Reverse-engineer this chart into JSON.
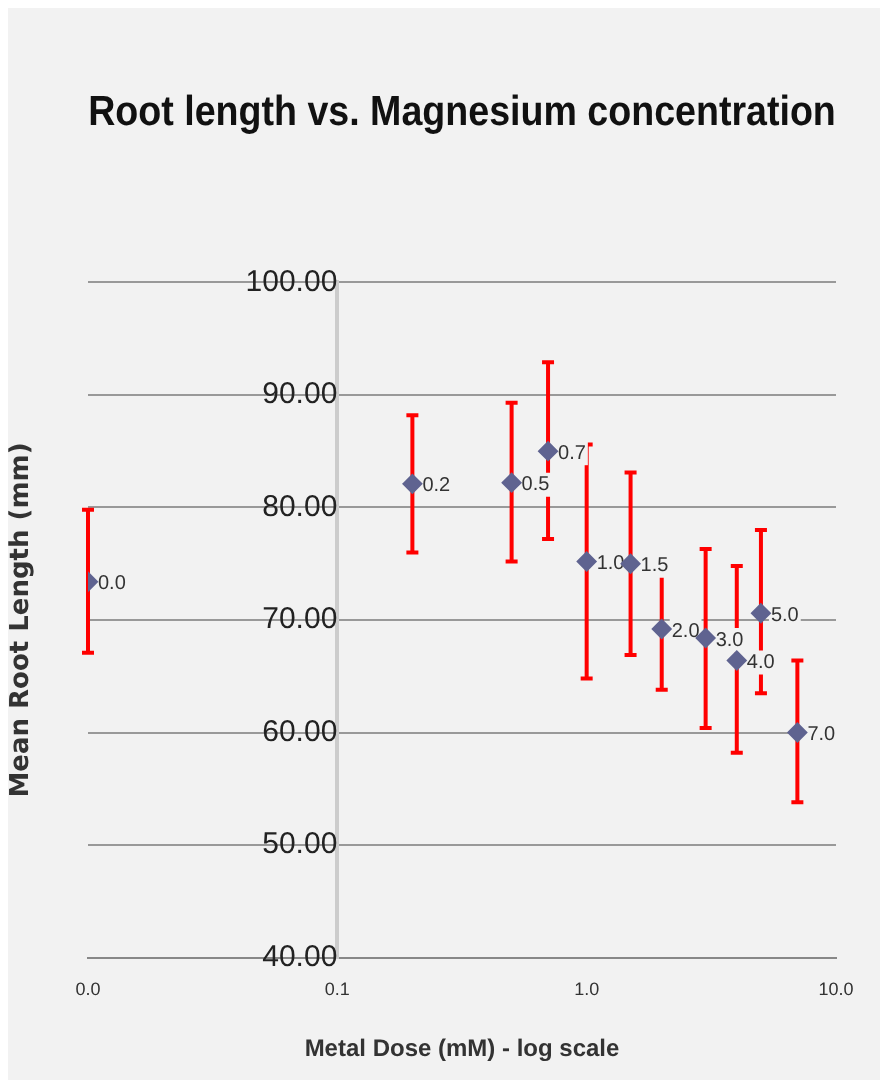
{
  "chart_data": {
    "type": "scatter",
    "title": "Root length vs. Magnesium concentration",
    "xlabel": "Metal Dose (mM) - log scale",
    "ylabel": "Mean Root Length (mm)",
    "x": [
      0.01,
      0.2,
      0.5,
      0.7,
      1.0,
      1.5,
      2.0,
      3.0,
      4.0,
      5.0,
      7.0
    ],
    "series": [
      {
        "color": "#5f6390",
        "values": [
          73.4,
          82.1,
          82.2,
          85.0,
          75.2,
          75.0,
          69.2,
          68.4,
          66.4,
          70.6,
          60.0
        ],
        "errors": [
          [
            67.1,
            79.8
          ],
          [
            76.0,
            88.2
          ],
          [
            75.2,
            89.3
          ],
          [
            77.2,
            92.9
          ],
          [
            64.8,
            85.6
          ],
          [
            66.9,
            83.1
          ],
          [
            63.8,
            74.4
          ],
          [
            60.4,
            76.3
          ],
          [
            58.2,
            74.8
          ],
          [
            63.5,
            78.0
          ],
          [
            53.8,
            66.4
          ]
        ]
      }
    ],
    "annotations": [
      {
        "text": "0.0",
        "x": 0.01,
        "y": 73.4
      },
      {
        "text": "0.2",
        "x": 0.2,
        "y": 82.1
      },
      {
        "text": "0.5",
        "x": 0.5,
        "y": 82.2
      },
      {
        "text": "0.7",
        "x": 0.7,
        "y": 85.0
      },
      {
        "text": "1.0",
        "x": 1.0,
        "y": 75.2
      },
      {
        "text": "1.5",
        "x": 1.5,
        "y": 75.0
      },
      {
        "text": "2.0",
        "x": 2.0,
        "y": 69.2
      },
      {
        "text": "3.0",
        "x": 3.0,
        "y": 68.4
      },
      {
        "text": "4.0",
        "x": 4.0,
        "y": 66.4
      },
      {
        "text": "5.0",
        "x": 5.0,
        "y": 70.6
      },
      {
        "text": "7.0",
        "x": 7.0,
        "y": 60.0
      }
    ],
    "log": "x",
    "xlim": [
      0.01,
      10
    ],
    "xticks": [
      {
        "value": 0.01,
        "label": "0.0"
      },
      {
        "value": 0.1,
        "label": "0.1"
      },
      {
        "value": 1,
        "label": "1.0"
      },
      {
        "value": 10,
        "label": "10.0"
      }
    ],
    "ylim": [
      40,
      100
    ],
    "yticks": [
      {
        "value": 40,
        "label": "40.00"
      },
      {
        "value": 50,
        "label": "50.00"
      },
      {
        "value": 60,
        "label": "60.00"
      },
      {
        "value": 70,
        "label": "70.00"
      },
      {
        "value": 80,
        "label": "80.00"
      },
      {
        "value": 90,
        "label": "90.00"
      },
      {
        "value": 100,
        "label": "100.00"
      }
    ],
    "grid": "y",
    "legend": false,
    "marker": "diamond"
  }
}
